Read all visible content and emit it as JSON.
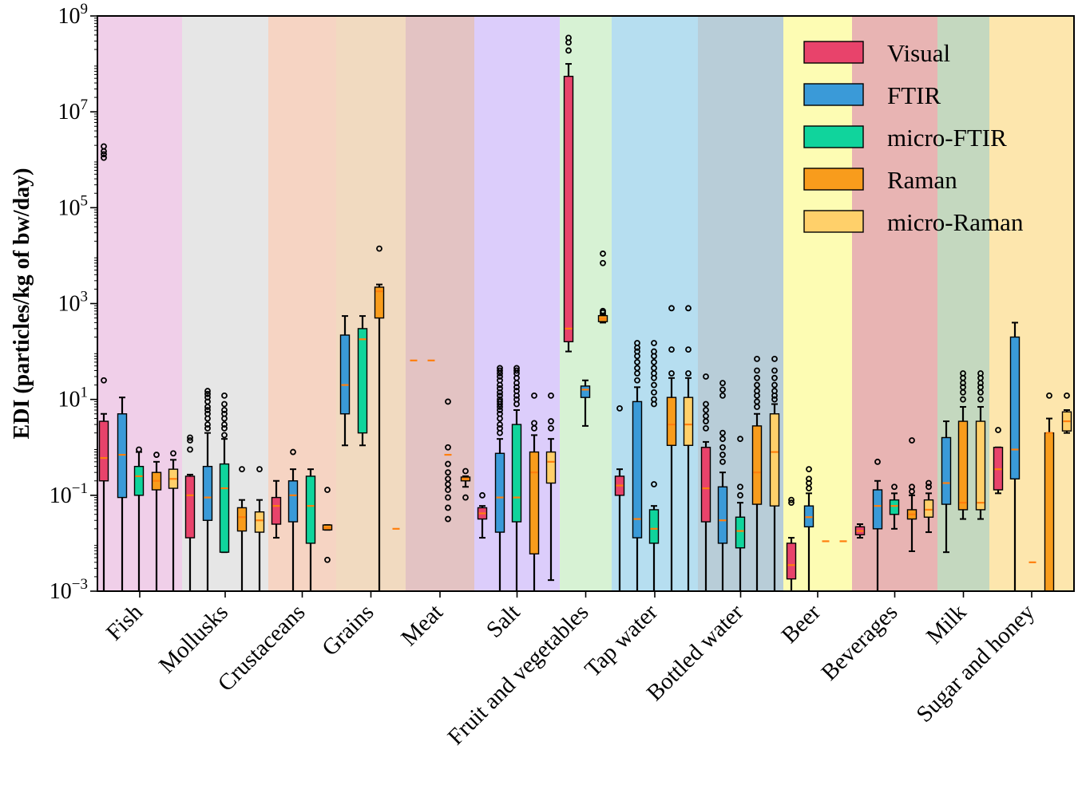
{
  "chart_data": {
    "type": "box",
    "ylabel": "EDI (particles/kg of bw/day)",
    "yscale": "log",
    "ylim": [
      0.001,
      1000000000
    ],
    "yticks": [
      {
        "value": 0.001,
        "base": "10",
        "exp": "−3"
      },
      {
        "value": 0.1,
        "base": "10",
        "exp": "−1"
      },
      {
        "value": 10,
        "base": "10",
        "exp": "1"
      },
      {
        "value": 1000,
        "base": "10",
        "exp": "3"
      },
      {
        "value": 100000,
        "base": "10",
        "exp": "5"
      },
      {
        "value": 10000000,
        "base": "10",
        "exp": "7"
      },
      {
        "value": 1000000000,
        "base": "10",
        "exp": "9"
      }
    ],
    "colors": {
      "median": "#ff7f0e",
      "Visual": "#e8436b",
      "FTIR": "#3a9ad8",
      "micro-FTIR": "#10d49c",
      "Raman": "#f89c1c",
      "micro-Raman": "#ffd06a"
    },
    "legend": {
      "position": "top-right",
      "entries": [
        {
          "name": "Visual",
          "color": "#e8436b"
        },
        {
          "name": "FTIR",
          "color": "#3a9ad8"
        },
        {
          "name": "micro-FTIR",
          "color": "#10d49c"
        },
        {
          "name": "Raman",
          "color": "#f89c1c"
        },
        {
          "name": "micro-Raman",
          "color": "#ffd06a"
        }
      ]
    },
    "categories": [
      {
        "name": "Fish",
        "bg": "#f0cfe9",
        "boxes": [
          {
            "method": "Visual",
            "q1": 0.2,
            "med": 0.6,
            "q3": 3.5,
            "wlo": 0.001,
            "whi": 5,
            "outliers": [
              25,
              1100000,
              1300000,
              1500000,
              1900000
            ]
          },
          {
            "method": "FTIR",
            "q1": 0.09,
            "med": 0.7,
            "q3": 5,
            "wlo": 0.001,
            "whi": 11,
            "outliers": []
          },
          {
            "method": "micro-FTIR",
            "q1": 0.1,
            "med": 0.25,
            "q3": 0.4,
            "wlo": 0.001,
            "whi": 0.8,
            "outliers": [
              0.9
            ]
          },
          {
            "method": "Raman",
            "q1": 0.13,
            "med": 0.2,
            "q3": 0.3,
            "wlo": 0.001,
            "whi": 0.5,
            "outliers": [
              0.7
            ]
          },
          {
            "method": "micro-Raman",
            "q1": 0.14,
            "med": 0.22,
            "q3": 0.35,
            "wlo": 0.001,
            "whi": 0.55,
            "outliers": [
              0.75
            ]
          }
        ]
      },
      {
        "name": "Mollusks",
        "bg": "#e6e6e6",
        "boxes": [
          {
            "method": "Visual",
            "q1": 0.013,
            "med": 0.1,
            "q3": 0.25,
            "wlo": 0.001,
            "whi": 0.27,
            "outliers": [
              0.9,
              1.4,
              1.6
            ]
          },
          {
            "method": "FTIR",
            "q1": 0.03,
            "med": 0.09,
            "q3": 0.4,
            "wlo": 0.001,
            "whi": 2,
            "outliers": [
              2.5,
              3,
              4,
              5,
              6,
              7,
              9,
              11,
              13,
              15
            ]
          },
          {
            "method": "micro-FTIR",
            "q1": 0.0065,
            "med": 0.14,
            "q3": 0.45,
            "wlo": 0.0065,
            "whi": 1.5,
            "outliers": [
              1.8,
              2.5,
              3,
              4,
              5,
              6,
              8,
              12
            ]
          },
          {
            "method": "Raman",
            "q1": 0.018,
            "med": 0.035,
            "q3": 0.055,
            "wlo": 0.001,
            "whi": 0.08,
            "outliers": [
              0.35
            ]
          },
          {
            "method": "micro-Raman",
            "q1": 0.017,
            "med": 0.03,
            "q3": 0.045,
            "wlo": 0.001,
            "whi": 0.08,
            "outliers": [
              0.35
            ]
          }
        ]
      },
      {
        "name": "Crustaceans",
        "bg": "#f6d4c3",
        "boxes": [
          {
            "method": "Visual",
            "q1": 0.025,
            "med": 0.06,
            "q3": 0.09,
            "wlo": 0.013,
            "whi": 0.2,
            "outliers": []
          },
          {
            "method": "FTIR",
            "q1": 0.028,
            "med": 0.1,
            "q3": 0.2,
            "wlo": 0.001,
            "whi": 0.35,
            "outliers": [
              0.8
            ]
          },
          {
            "method": "micro-FTIR",
            "q1": 0.01,
            "med": 0.06,
            "q3": 0.25,
            "wlo": 0.001,
            "whi": 0.35,
            "outliers": []
          },
          {
            "method": "Raman",
            "q1": 0.019,
            "med": 0.021,
            "q3": 0.024,
            "wlo": 0.019,
            "whi": 0.024,
            "outliers": [
              0.0045,
              0.13
            ]
          }
        ]
      },
      {
        "name": "Grains",
        "bg": "#f1dac0",
        "boxes": [
          {
            "method": "FTIR",
            "q1": 5,
            "med": 20,
            "q3": 220,
            "wlo": 1.1,
            "whi": 550,
            "outliers": []
          },
          {
            "method": "micro-FTIR",
            "q1": 2,
            "med": 180,
            "q3": 300,
            "wlo": 1.1,
            "whi": 550,
            "outliers": []
          },
          {
            "method": "Raman",
            "q1": 0.02,
            "med": 0.02,
            "q3": 0.02,
            "wlo": 0.02,
            "whi": 0.02,
            "outliers": []
          },
          {
            "method": "Raman",
            "q1": 500,
            "med": 1800,
            "q3": 2200,
            "wlo": 0.001,
            "whi": 2500,
            "outliers": [
              14000
            ]
          }
        ]
      },
      {
        "name": "Meat",
        "bg": "#e3c3c3",
        "boxes": [
          {
            "method": "Raman",
            "q1": 65,
            "med": 65,
            "q3": 65,
            "wlo": 65,
            "whi": 65,
            "outliers": []
          },
          {
            "method": "Raman",
            "q1": 65,
            "med": 65,
            "q3": 65,
            "wlo": 65,
            "whi": 65,
            "outliers": []
          },
          {
            "method": "Raman",
            "q1": 0.7,
            "med": 0.7,
            "q3": 0.7,
            "wlo": 0.7,
            "whi": 0.7,
            "outliers": [
              0.032,
              0.055,
              0.09,
              0.13,
              0.17,
              0.22,
              0.3,
              0.45,
              1.0,
              9
            ]
          },
          {
            "method": "Raman",
            "q1": 0.2,
            "med": 0.22,
            "q3": 0.24,
            "wlo": 0.15,
            "whi": 0.25,
            "outliers": [
              0.09,
              0.32
            ]
          }
        ]
      },
      {
        "name": "Salt",
        "bg": "#dccdfb",
        "boxes": [
          {
            "method": "Visual",
            "q1": 0.032,
            "med": 0.042,
            "q3": 0.055,
            "wlo": 0.013,
            "whi": 0.06,
            "outliers": [
              0.1
            ]
          },
          {
            "method": "FTIR",
            "q1": 0.017,
            "med": 0.09,
            "q3": 0.75,
            "wlo": 0.001,
            "whi": 1.5,
            "outliers": [
              2,
              2.5,
              3,
              4,
              5,
              6,
              7,
              8,
              9,
              10,
              12,
              14,
              17,
              20,
              25,
              30,
              35,
              40,
              45
            ]
          },
          {
            "method": "micro-FTIR",
            "q1": 0.028,
            "med": 0.09,
            "q3": 3,
            "wlo": 0.001,
            "whi": 6,
            "outliers": [
              8,
              10,
              12,
              15,
              18,
              22,
              28,
              35,
              40,
              45
            ]
          },
          {
            "method": "Raman",
            "q1": 0.006,
            "med": 0.3,
            "q3": 0.8,
            "wlo": 0.001,
            "whi": 1.8,
            "outliers": [
              2.5,
              3.2,
              12
            ]
          },
          {
            "method": "micro-Raman",
            "q1": 0.18,
            "med": 0.5,
            "q3": 0.8,
            "wlo": 0.0017,
            "whi": 1.5,
            "outliers": [
              2.5,
              3.5,
              12
            ]
          }
        ]
      },
      {
        "name": "Fruit and vegetables",
        "bg": "#d7f2d4",
        "boxes": [
          {
            "method": "Visual",
            "q1": 160,
            "med": 300,
            "q3": 55000000,
            "wlo": 100,
            "whi": 100000000,
            "outliers": [
              190000000,
              280000000,
              350000000
            ]
          },
          {
            "method": "FTIR",
            "q1": 11,
            "med": 16,
            "q3": 19,
            "wlo": 2.8,
            "whi": 25,
            "outliers": []
          },
          {
            "method": "Raman",
            "q1": 420,
            "med": 480,
            "q3": 560,
            "wlo": 400,
            "whi": 600,
            "outliers": [
              650,
              700,
              7000,
              11000
            ]
          }
        ]
      },
      {
        "name": "Tap water",
        "bg": "#b6def0",
        "boxes": [
          {
            "method": "Visual",
            "q1": 0.1,
            "med": 0.16,
            "q3": 0.25,
            "wlo": 0.001,
            "whi": 0.35,
            "outliers": [
              6.5
            ]
          },
          {
            "method": "FTIR",
            "q1": 0.013,
            "med": 0.032,
            "q3": 9,
            "wlo": 0.001,
            "whi": 18,
            "outliers": [
              25,
              35,
              45,
              60,
              80,
              100,
              120,
              150
            ]
          },
          {
            "method": "micro-FTIR",
            "q1": 0.01,
            "med": 0.02,
            "q3": 0.05,
            "wlo": 0.001,
            "whi": 0.06,
            "outliers": [
              0.17,
              8,
              10,
              14,
              20,
              28,
              35,
              45,
              60,
              80,
              100,
              150
            ]
          },
          {
            "method": "Raman",
            "q1": 1.1,
            "med": 3,
            "q3": 11,
            "wlo": 0.001,
            "whi": 28,
            "outliers": [
              35,
              110,
              800
            ]
          },
          {
            "method": "micro-Raman",
            "q1": 1.1,
            "med": 3,
            "q3": 11,
            "wlo": 0.001,
            "whi": 28,
            "outliers": [
              35,
              110,
              800
            ]
          }
        ]
      },
      {
        "name": "Bottled water",
        "bg": "#b8cdd8",
        "boxes": [
          {
            "method": "Visual",
            "q1": 0.028,
            "med": 0.14,
            "q3": 1,
            "wlo": 0.001,
            "whi": 1.3,
            "outliers": [
              2.5,
              3.5,
              4.5,
              6,
              8,
              30
            ]
          },
          {
            "method": "FTIR",
            "q1": 0.01,
            "med": 0.03,
            "q3": 0.15,
            "wlo": 0.001,
            "whi": 0.3,
            "outliers": [
              0.5,
              0.7,
              1,
              1.5,
              2,
              12,
              16,
              22
            ]
          },
          {
            "method": "micro-FTIR",
            "q1": 0.008,
            "med": 0.018,
            "q3": 0.035,
            "wlo": 0.001,
            "whi": 0.07,
            "outliers": [
              0.1,
              0.15,
              1.5
            ]
          },
          {
            "method": "Raman",
            "q1": 0.065,
            "med": 0.3,
            "q3": 2.8,
            "wlo": 0.001,
            "whi": 5,
            "outliers": [
              7,
              9,
              12,
              15,
              20,
              28,
              40,
              70
            ]
          },
          {
            "method": "micro-Raman",
            "q1": 0.06,
            "med": 0.8,
            "q3": 5,
            "wlo": 0.001,
            "whi": 8,
            "outliers": [
              10,
              12,
              15,
              20,
              28,
              40,
              70
            ]
          }
        ]
      },
      {
        "name": "Beer",
        "bg": "#fdfcb3",
        "boxes": [
          {
            "method": "Visual",
            "q1": 0.0018,
            "med": 0.0035,
            "q3": 0.01,
            "wlo": 0.001,
            "whi": 0.013,
            "outliers": [
              0.07,
              0.08
            ]
          },
          {
            "method": "FTIR",
            "q1": 0.022,
            "med": 0.035,
            "q3": 0.06,
            "wlo": 0.001,
            "whi": 0.11,
            "outliers": [
              0.14,
              0.18,
              0.22,
              0.35
            ]
          },
          {
            "method": "Raman",
            "q1": 0.011,
            "med": 0.011,
            "q3": 0.011,
            "wlo": 0.011,
            "whi": 0.011,
            "outliers": []
          },
          {
            "method": "Raman",
            "q1": 0.011,
            "med": 0.011,
            "q3": 0.011,
            "wlo": 0.011,
            "whi": 0.011,
            "outliers": []
          }
        ]
      },
      {
        "name": "Beverages",
        "bg": "#e8b4b3",
        "boxes": [
          {
            "method": "Visual",
            "q1": 0.015,
            "med": 0.018,
            "q3": 0.022,
            "wlo": 0.013,
            "whi": 0.025,
            "outliers": []
          },
          {
            "method": "FTIR",
            "q1": 0.02,
            "med": 0.06,
            "q3": 0.13,
            "wlo": 0.001,
            "whi": 0.2,
            "outliers": [
              0.5
            ]
          },
          {
            "method": "micro-FTIR",
            "q1": 0.04,
            "med": 0.06,
            "q3": 0.08,
            "wlo": 0.02,
            "whi": 0.11,
            "outliers": [
              0.15
            ]
          },
          {
            "method": "Raman",
            "q1": 0.032,
            "med": 0.04,
            "q3": 0.05,
            "wlo": 0.0068,
            "whi": 0.1,
            "outliers": [
              0.12,
              0.15,
              1.4
            ]
          },
          {
            "method": "micro-Raman",
            "q1": 0.035,
            "med": 0.05,
            "q3": 0.08,
            "wlo": 0.017,
            "whi": 0.11,
            "outliers": [
              0.15,
              0.18
            ]
          }
        ]
      },
      {
        "name": "Milk",
        "bg": "#c4d8bf",
        "boxes": [
          {
            "method": "FTIR",
            "q1": 0.065,
            "med": 0.18,
            "q3": 1.6,
            "wlo": 0.0065,
            "whi": 3.5,
            "outliers": []
          },
          {
            "method": "Raman",
            "q1": 0.05,
            "med": 0.07,
            "q3": 3.5,
            "wlo": 0.032,
            "whi": 7,
            "outliers": [
              10,
              14,
              18,
              22,
              28,
              35
            ]
          },
          {
            "method": "micro-Raman",
            "q1": 0.05,
            "med": 0.07,
            "q3": 3.5,
            "wlo": 0.032,
            "whi": 7,
            "outliers": [
              10,
              14,
              18,
              22,
              28,
              35
            ]
          }
        ]
      },
      {
        "name": "Sugar and honey",
        "bg": "#fde6ad",
        "boxes": [
          {
            "method": "Visual",
            "q1": 0.13,
            "med": 0.35,
            "q3": 1,
            "wlo": 0.11,
            "whi": 1,
            "outliers": [
              2.3
            ]
          },
          {
            "method": "FTIR",
            "q1": 0.22,
            "med": 0.9,
            "q3": 200,
            "wlo": 0.001,
            "whi": 400,
            "outliers": []
          },
          {
            "method": "Raman",
            "q1": 0.004,
            "med": 0.004,
            "q3": 0.004,
            "wlo": 0.004,
            "whi": 0.004,
            "outliers": []
          },
          {
            "method": "Raman",
            "q1": 0.001,
            "med": 2,
            "q3": 2,
            "wlo": 0.001,
            "whi": 4,
            "outliers": [
              12
            ]
          },
          {
            "method": "micro-Raman",
            "q1": 2.2,
            "med": 3.5,
            "q3": 5.5,
            "wlo": 2,
            "whi": 6,
            "outliers": [
              12
            ]
          }
        ]
      }
    ]
  }
}
